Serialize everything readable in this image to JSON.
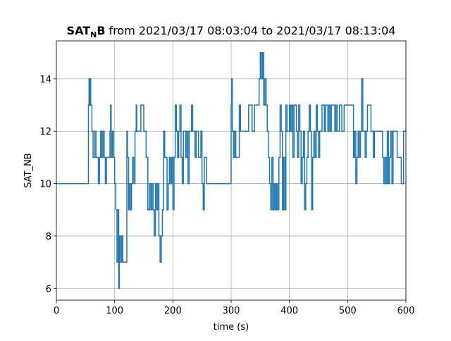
{
  "chart_data": {
    "type": "line",
    "step": "post",
    "title": {
      "name_main": "SAT",
      "name_sub": "N",
      "name_end": "B",
      "rest": "from 2021/03/17 08:03:04 to 2021/03/17 08:13:04"
    },
    "x_label": "time (s)",
    "y_label": "SAT_NB",
    "xlim": [
      0,
      600
    ],
    "ylim": [
      5.55,
      15.45
    ],
    "xticks": [
      0,
      100,
      200,
      300,
      400,
      500,
      600
    ],
    "yticks": [
      6,
      8,
      10,
      12,
      14
    ],
    "grid": true,
    "series": [
      {
        "color": "#1f77b4",
        "x": [
          0,
          55,
          56,
          57,
          58,
          59,
          61,
          63,
          66,
          68,
          72,
          74,
          76,
          78,
          80,
          82,
          84,
          86,
          90,
          92,
          93,
          94,
          96,
          98,
          100,
          102,
          104,
          106,
          107,
          108,
          110,
          112,
          114,
          121,
          122,
          124,
          125,
          127,
          129,
          131,
          133,
          135,
          137,
          138,
          145,
          150,
          154,
          157,
          160,
          162,
          164,
          166,
          168,
          170,
          172,
          174,
          176,
          178,
          180,
          182,
          184,
          186,
          190,
          192,
          194,
          196,
          198,
          200,
          202,
          204,
          206,
          208,
          210,
          212,
          214,
          216,
          218,
          222,
          224,
          226,
          228,
          232,
          234,
          238,
          240,
          244,
          248,
          250,
          252,
          254,
          258,
          300,
          301,
          302,
          304,
          306,
          308,
          314,
          316,
          330,
          336,
          340,
          348,
          350,
          352,
          354,
          356,
          358,
          360,
          362,
          364,
          366,
          368,
          370,
          372,
          374,
          376,
          378,
          380,
          382,
          384,
          386,
          388,
          390,
          392,
          394,
          396,
          400,
          402,
          404,
          406,
          408,
          412,
          414,
          416,
          418,
          420,
          422,
          424,
          426,
          428,
          430,
          432,
          434,
          436,
          438,
          440,
          442,
          444,
          446,
          448,
          450,
          452,
          456,
          460,
          462,
          466,
          468,
          470,
          472,
          478,
          480,
          482,
          486,
          490,
          494,
          510,
          512,
          514,
          516,
          518,
          520,
          522,
          524,
          526,
          530,
          532,
          534,
          540,
          544,
          546,
          560,
          562,
          564,
          566,
          568,
          570,
          572,
          574,
          576,
          578,
          585,
          592,
          596,
          600
        ],
        "values": [
          10,
          13,
          14,
          13,
          14,
          13,
          12,
          11,
          12,
          11,
          10,
          11,
          12,
          11,
          12,
          11,
          10,
          11,
          11,
          12,
          13,
          11,
          12,
          11,
          10,
          9,
          7,
          9,
          6,
          8,
          7,
          8,
          7,
          12,
          11,
          9,
          10,
          9,
          10,
          11,
          10,
          12,
          13,
          12,
          13,
          12,
          11,
          9,
          10,
          9,
          10,
          9,
          8,
          10,
          9,
          10,
          8,
          7,
          8,
          9,
          12,
          11,
          9,
          10,
          11,
          10,
          11,
          9,
          11,
          13,
          12,
          11,
          12,
          13,
          11,
          10,
          12,
          11,
          12,
          10,
          12,
          13,
          12,
          11,
          12,
          11,
          12,
          10,
          9,
          11,
          10,
          13,
          14,
          12,
          11,
          12,
          11,
          13,
          12,
          13,
          12,
          13,
          14,
          15,
          14,
          15,
          13,
          14,
          13,
          12,
          11,
          10,
          9,
          11,
          9,
          10,
          9,
          10,
          9,
          11,
          13,
          12,
          9,
          11,
          9,
          13,
          12,
          13,
          12,
          13,
          11,
          13,
          12,
          11,
          13,
          12,
          10,
          11,
          12,
          9,
          10,
          11,
          12,
          13,
          12,
          9,
          11,
          12,
          11,
          13,
          12,
          11,
          12,
          13,
          12,
          13,
          12,
          13,
          12,
          13,
          12,
          13,
          12,
          13,
          12,
          13,
          11,
          12,
          10,
          11,
          12,
          11,
          12,
          14,
          12,
          11,
          12,
          13,
          12,
          11,
          12,
          11,
          10,
          11,
          10,
          12,
          10,
          11,
          12,
          10,
          12,
          11,
          10,
          12,
          12
        ]
      }
    ]
  }
}
